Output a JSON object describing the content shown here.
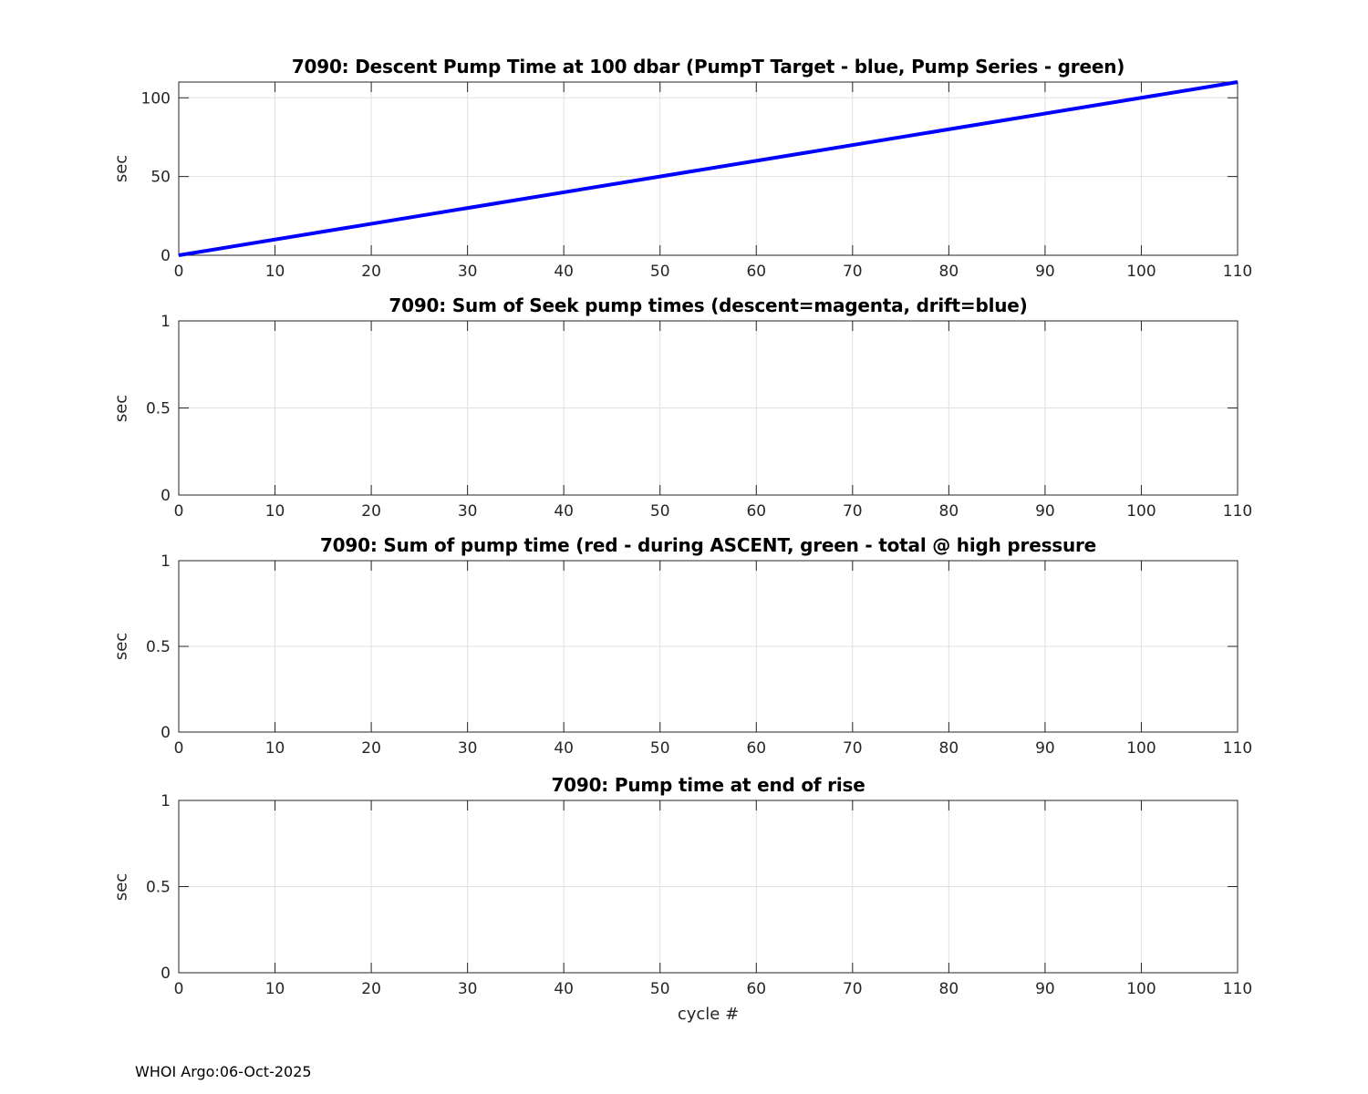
{
  "figure": {
    "footer": "WHOI Argo:06-Oct-2025"
  },
  "style": {
    "background": "#ffffff",
    "axes_color": "#262626",
    "grid_color": "#e0e0e0",
    "title_color": "#000000",
    "line_blue": "#0000ff"
  },
  "chart_data": [
    {
      "type": "line",
      "title": "7090: Descent Pump Time at 100 dbar (PumpT Target - blue, Pump Series - green)",
      "ylabel": "sec",
      "xlabel": "",
      "xlim": [
        0,
        110
      ],
      "ylim": [
        0,
        110
      ],
      "xticks": [
        0,
        10,
        20,
        30,
        40,
        50,
        60,
        70,
        80,
        90,
        100,
        110
      ],
      "yticks": [
        0,
        50,
        100
      ],
      "grid": true,
      "legend_position": "none",
      "series": [
        {
          "name": "PumpT Target",
          "color": "#0000ff",
          "line_width": 4,
          "x": [
            0,
            110
          ],
          "y": [
            0,
            110
          ]
        }
      ]
    },
    {
      "type": "line",
      "title": "7090: Sum of Seek pump times (descent=magenta, drift=blue)",
      "ylabel": "sec",
      "xlabel": "",
      "xlim": [
        0,
        110
      ],
      "ylim": [
        0,
        1
      ],
      "xticks": [
        0,
        10,
        20,
        30,
        40,
        50,
        60,
        70,
        80,
        90,
        100,
        110
      ],
      "yticks": [
        0,
        0.5,
        1
      ],
      "grid": true,
      "legend_position": "none",
      "series": []
    },
    {
      "type": "line",
      "title": "7090: Sum of pump time (red - during ASCENT, green - total @ high pressure",
      "ylabel": "sec",
      "xlabel": "",
      "xlim": [
        0,
        110
      ],
      "ylim": [
        0,
        1
      ],
      "xticks": [
        0,
        10,
        20,
        30,
        40,
        50,
        60,
        70,
        80,
        90,
        100,
        110
      ],
      "yticks": [
        0,
        0.5,
        1
      ],
      "grid": true,
      "legend_position": "none",
      "series": []
    },
    {
      "type": "line",
      "title": "7090: Pump time at end of rise",
      "ylabel": "sec",
      "xlabel": "cycle #",
      "xlim": [
        0,
        110
      ],
      "ylim": [
        0,
        1
      ],
      "xticks": [
        0,
        10,
        20,
        30,
        40,
        50,
        60,
        70,
        80,
        90,
        100,
        110
      ],
      "yticks": [
        0,
        0.5,
        1
      ],
      "grid": true,
      "legend_position": "none",
      "series": []
    }
  ]
}
